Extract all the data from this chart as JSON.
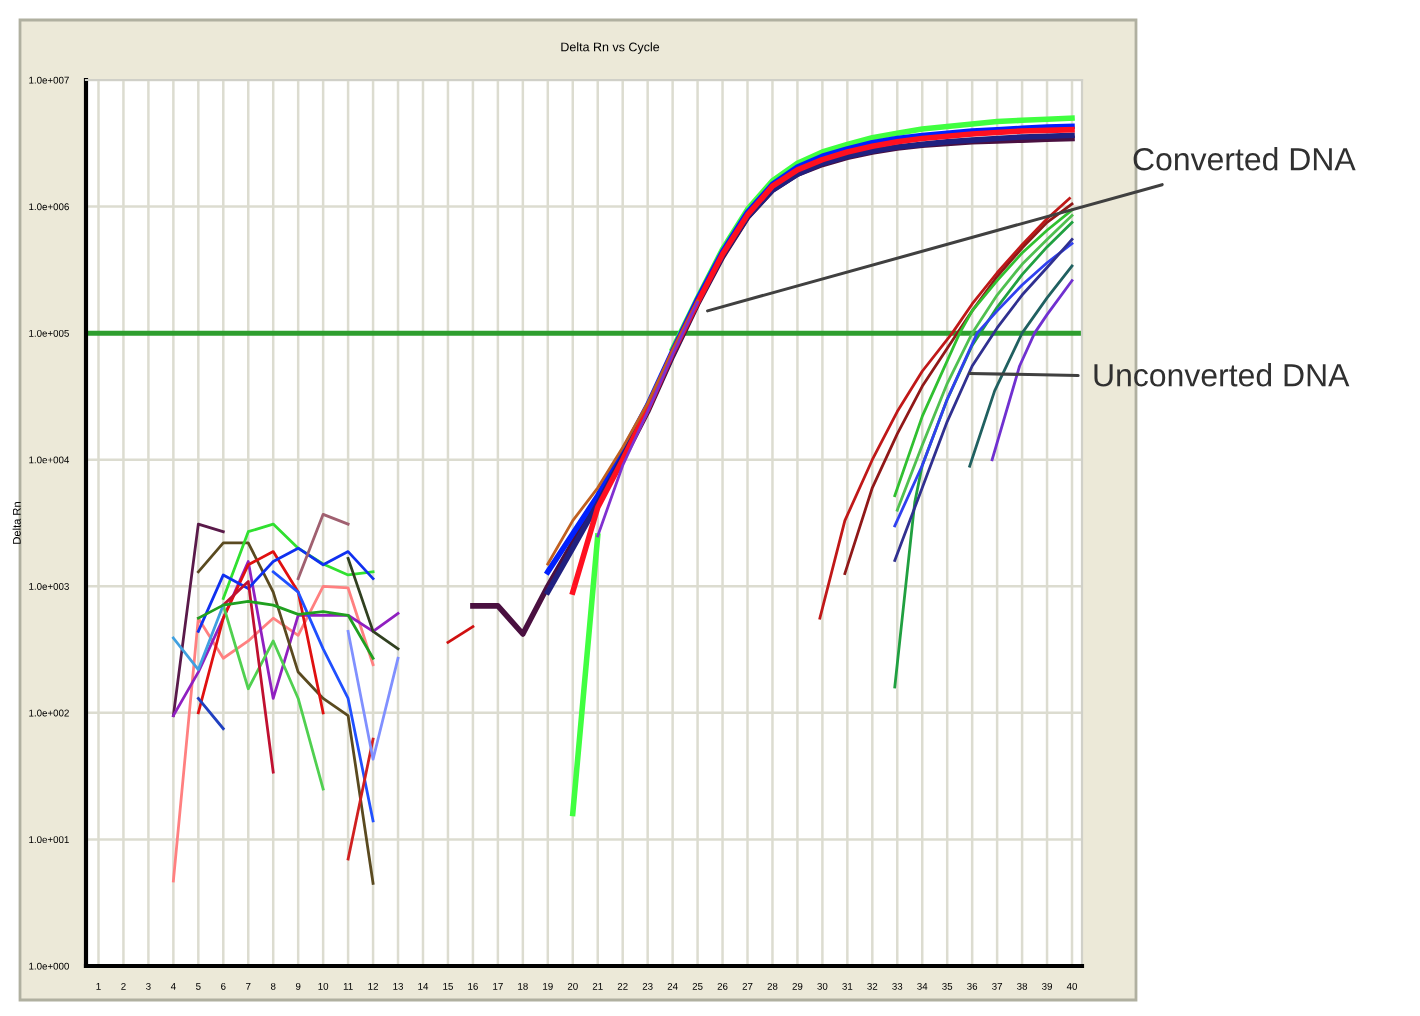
{
  "chart_data": {
    "type": "line",
    "title": "Delta Rn vs Cycle",
    "ylabel": "Delta Rn",
    "xlim": [
      0.5,
      40.4
    ],
    "ylim": [
      1,
      10000000
    ],
    "log": "y",
    "grid": true,
    "legend": false,
    "marker": "none",
    "line_style": "solid",
    "xticks": [
      1,
      2,
      3,
      4,
      5,
      6,
      7,
      8,
      9,
      10,
      11,
      12,
      13,
      14,
      15,
      16,
      17,
      18,
      19,
      20,
      21,
      22,
      23,
      24,
      25,
      26,
      27,
      28,
      29,
      30,
      31,
      32,
      33,
      34,
      35,
      36,
      37,
      38,
      39,
      40
    ],
    "yticks": [
      {
        "value": 1,
        "label": "1.0e+000"
      },
      {
        "value": 10,
        "label": "1.0e+001"
      },
      {
        "value": 100,
        "label": "1.0e+002"
      },
      {
        "value": 1000,
        "label": "1.0e+003"
      },
      {
        "value": 10000,
        "label": "1.0e+004"
      },
      {
        "value": 100000,
        "label": "1.0e+005"
      },
      {
        "value": 1000000,
        "label": "1.0e+006"
      },
      {
        "value": 10000000,
        "label": "1.0e+007"
      }
    ],
    "ref_lines": [
      {
        "axis": "y",
        "value": 100000,
        "color": "#2e9e2e"
      }
    ],
    "annotations": [
      {
        "text": "Converted DNA",
        "x": 25.4,
        "y": 150000
      },
      {
        "text": "Unconverted DNA",
        "x": 35.9,
        "y": 48000
      }
    ],
    "series": [
      {
        "color": "#5a1a4a",
        "x": [
          4,
          5,
          6
        ],
        "values": [
          95,
          3100,
          2700
        ]
      },
      {
        "color": "#ff8080",
        "x": [
          4,
          5,
          6,
          7,
          8,
          9,
          10,
          11,
          12
        ],
        "values": [
          4.7,
          560,
          270,
          370,
          560,
          410,
          1000,
          970,
          240
        ]
      },
      {
        "color": "#9020c0",
        "x": [
          4,
          5,
          6,
          7,
          8,
          9,
          10,
          11,
          12,
          13
        ],
        "values": [
          95,
          210,
          560,
          1570,
          130,
          590,
          590,
          590,
          440,
          610
        ]
      },
      {
        "color": "#5a4a20",
        "x": [
          5,
          6,
          7,
          8,
          9,
          10,
          11,
          12
        ],
        "values": [
          1300,
          2200,
          2200,
          900,
          210,
          130,
          95,
          4.5
        ]
      },
      {
        "color": "#30e030",
        "x": [
          6,
          7,
          8,
          9,
          10,
          11,
          12
        ],
        "values": [
          800,
          2700,
          3100,
          2000,
          1500,
          1230,
          1300
        ]
      },
      {
        "color": "#e01010",
        "x": [
          5,
          6,
          7,
          8,
          9,
          10
        ],
        "values": [
          100,
          560,
          1480,
          1880,
          900,
          100
        ]
      },
      {
        "color": "#1030f0",
        "x": [
          5,
          6,
          7,
          8,
          9,
          10,
          11,
          12
        ],
        "values": [
          440,
          1230,
          960,
          1570,
          2000,
          1480,
          1880,
          1150
        ]
      },
      {
        "color": "#50d050",
        "x": [
          6,
          7,
          8,
          9,
          10
        ],
        "values": [
          710,
          155,
          370,
          130,
          25
        ]
      },
      {
        "color": "#c01030",
        "x": [
          6,
          7,
          8
        ],
        "values": [
          710,
          1090,
          34
        ]
      },
      {
        "color": "#2040c0",
        "x": [
          5,
          6
        ],
        "values": [
          130,
          75
        ]
      },
      {
        "color": "#40a0e0",
        "x": [
          4,
          5,
          6
        ],
        "values": [
          390,
          220,
          710
        ]
      },
      {
        "color": "#2050ff",
        "x": [
          8,
          9,
          10,
          11,
          12
        ],
        "values": [
          1300,
          900,
          320,
          130,
          14
        ]
      },
      {
        "color": "#d02020",
        "x": [
          11,
          12
        ],
        "values": [
          7,
          62
        ]
      },
      {
        "color": "#8090ff",
        "x": [
          11,
          12,
          13
        ],
        "values": [
          440,
          43,
          270
        ]
      },
      {
        "color": "#304020",
        "x": [
          11,
          12,
          13
        ],
        "values": [
          1660,
          440,
          320
        ]
      },
      {
        "color": "#20a020",
        "x": [
          5,
          6,
          7,
          8,
          9,
          10,
          11,
          12
        ],
        "values": [
          560,
          710,
          760,
          710,
          600,
          630,
          590,
          270
        ]
      },
      {
        "color": "#a06070",
        "x": [
          9,
          10,
          11
        ],
        "values": [
          1150,
          3700,
          3100
        ]
      },
      {
        "color": "#d01010",
        "x": [
          15,
          16
        ],
        "values": [
          360,
          480
        ]
      },
      {
        "color": "#4a1040",
        "x": [
          16,
          17,
          18,
          19,
          20,
          21,
          22,
          23,
          24,
          25,
          26,
          27,
          28,
          29,
          30,
          31,
          32,
          33,
          34,
          35,
          36,
          37,
          38,
          39,
          40
        ],
        "values": [
          700,
          700,
          420,
          1000,
          2200,
          4600,
          10000,
          24000,
          66000,
          170000,
          400000,
          820000,
          1350000,
          1800000,
          2150000,
          2450000,
          2700000,
          2900000,
          3050000,
          3150000,
          3250000,
          3300000,
          3350000,
          3400000,
          3450000
        ]
      },
      {
        "color": "#40ff40",
        "x": [
          20,
          21,
          22,
          23,
          24,
          25,
          26,
          27,
          28,
          29,
          30,
          31,
          32,
          33,
          34,
          35,
          36,
          37,
          38,
          39,
          40
        ],
        "values": [
          16,
          2500,
          null,
          null,
          75000,
          190000,
          460000,
          950000,
          1600000,
          2200000,
          2700000,
          3100000,
          3500000,
          3800000,
          4100000,
          4300000,
          4500000,
          4700000,
          4800000,
          4900000,
          5000000
        ]
      },
      {
        "color": "#0020ff",
        "x": [
          19,
          20,
          21,
          22,
          23,
          24,
          25,
          26,
          27,
          28,
          29,
          30,
          31,
          32,
          33,
          34,
          35,
          36,
          37,
          38,
          39,
          40
        ],
        "values": [
          1300,
          2600,
          5200,
          11500,
          27000,
          72000,
          185000,
          440000,
          900000,
          1500000,
          2050000,
          2500000,
          2850000,
          3200000,
          3450000,
          3650000,
          3800000,
          3950000,
          4050000,
          4150000,
          4250000,
          4300000
        ]
      },
      {
        "color": "#202080",
        "x": [
          19,
          20,
          21,
          22,
          23,
          24,
          25,
          26,
          27,
          28,
          29,
          30,
          31,
          32,
          33,
          34,
          35,
          36,
          37,
          38,
          39,
          40
        ],
        "values": [
          900,
          2000,
          4500,
          10500,
          25000,
          68000,
          175000,
          410000,
          830000,
          1350000,
          1800000,
          2200000,
          2500000,
          2750000,
          2950000,
          3100000,
          3250000,
          3350000,
          3450000,
          3550000,
          3600000,
          3650000
        ]
      },
      {
        "color": "#ff1020",
        "x": [
          20,
          21,
          22,
          23,
          24,
          25,
          26,
          27,
          28,
          29,
          30,
          31,
          32,
          33,
          34,
          35,
          36,
          37,
          38,
          39,
          40
        ],
        "values": [
          900,
          4200,
          10000,
          25000,
          70000,
          175000,
          420000,
          860000,
          1450000,
          1950000,
          2350000,
          2700000,
          3000000,
          3250000,
          3450000,
          3600000,
          3750000,
          3850000,
          3950000,
          4000000,
          4050000
        ]
      },
      {
        "color": "#c06020",
        "x": [
          19,
          20,
          21,
          22,
          23,
          24,
          25
        ],
        "values": [
          1500,
          3300,
          6000,
          12500,
          28000,
          73000,
          180000
        ]
      },
      {
        "color": "#8030d0",
        "x": [
          21,
          22,
          23,
          24,
          25
        ],
        "values": [
          2500,
          9000,
          24000,
          68000,
          175000
        ]
      },
      {
        "color": "#c01818",
        "x": [
          29.9,
          30.9,
          32,
          33,
          34,
          35.2,
          36,
          37,
          38,
          39,
          39.9
        ],
        "values": [
          560,
          3300,
          10000,
          24000,
          50000,
          100000,
          170000,
          300000,
          500000,
          800000,
          1160000
        ]
      },
      {
        "color": "#901818",
        "x": [
          30.9,
          32,
          33,
          34,
          35.4,
          36,
          37,
          38,
          39,
          40
        ],
        "values": [
          1260,
          6000,
          16000,
          38000,
          100000,
          150000,
          280000,
          470000,
          750000,
          1050000
        ]
      },
      {
        "color": "#30c030",
        "x": [
          32.9,
          34,
          35.5,
          36,
          37,
          38,
          39,
          40
        ],
        "values": [
          5200,
          22000,
          100000,
          150000,
          260000,
          430000,
          650000,
          940000
        ]
      },
      {
        "color": "#20a040",
        "x": [
          32.9,
          33.7,
          34,
          35,
          36,
          37,
          38,
          39,
          40
        ],
        "values": [
          160,
          4600,
          9000,
          30000,
          80000,
          160000,
          290000,
          480000,
          750000
        ]
      },
      {
        "color": "#50c050",
        "x": [
          33,
          34,
          35,
          36,
          37,
          38,
          39,
          40
        ],
        "values": [
          4000,
          13000,
          40000,
          100000,
          200000,
          350000,
          550000,
          850000
        ]
      },
      {
        "color": "#3040f0",
        "x": [
          32.9,
          34,
          35,
          36.2,
          37,
          38,
          39,
          40
        ],
        "values": [
          3000,
          9000,
          30000,
          100000,
          150000,
          240000,
          360000,
          510000
        ]
      },
      {
        "color": "#303090",
        "x": [
          32.9,
          34,
          35,
          36,
          37,
          38,
          39,
          40
        ],
        "values": [
          1600,
          6000,
          20000,
          55000,
          110000,
          200000,
          330000,
          550000
        ]
      },
      {
        "color": "#206060",
        "x": [
          35.9,
          36.9,
          38,
          39,
          40
        ],
        "values": [
          8900,
          35000,
          100000,
          190000,
          340000
        ]
      },
      {
        "color": "#7030d0",
        "x": [
          36.8,
          37.9,
          38.5,
          39,
          40
        ],
        "values": [
          10000,
          55000,
          100000,
          140000,
          260000
        ]
      }
    ]
  }
}
